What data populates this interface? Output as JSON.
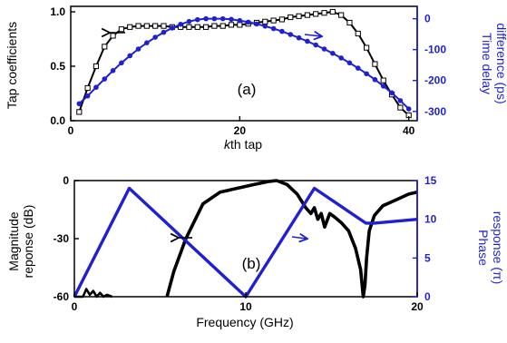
{
  "chart_data": [
    {
      "type": "line",
      "panel_label": "(a)",
      "xlabel": "kth tap",
      "xlabel_k": "k",
      "xlabel_rest": "th tap",
      "ylabel": "Tap coefficients",
      "ylabel_right": [
        "Time delay",
        "difference (ps)"
      ],
      "xlim": [
        0,
        41
      ],
      "ylim": [
        0,
        1.05
      ],
      "ylim_right": [
        -330,
        40
      ],
      "x_ticks": [
        0,
        20,
        40
      ],
      "y_ticks": [
        0.0,
        0.5,
        1.0
      ],
      "y_tick_labels": [
        "0.0",
        "0.5",
        "1.0"
      ],
      "y_right_ticks": [
        0,
        -100,
        -200,
        -300
      ],
      "grid": false,
      "series": [
        {
          "axis": "left",
          "color": "#000000",
          "marker": "open-square",
          "x": [
            1,
            2,
            3,
            4,
            5,
            6,
            7,
            8,
            9,
            10,
            11,
            12,
            13,
            14,
            15,
            16,
            17,
            18,
            19,
            20,
            21,
            22,
            23,
            24,
            25,
            26,
            27,
            28,
            29,
            30,
            31,
            32,
            33,
            34,
            35,
            36,
            37,
            38,
            39,
            40
          ],
          "y": [
            0.08,
            0.3,
            0.5,
            0.68,
            0.78,
            0.84,
            0.86,
            0.87,
            0.87,
            0.87,
            0.87,
            0.86,
            0.86,
            0.86,
            0.86,
            0.86,
            0.87,
            0.87,
            0.88,
            0.88,
            0.89,
            0.9,
            0.91,
            0.92,
            0.93,
            0.95,
            0.96,
            0.97,
            0.98,
            0.99,
            1.0,
            0.97,
            0.9,
            0.8,
            0.67,
            0.52,
            0.37,
            0.24,
            0.12,
            0.05
          ]
        },
        {
          "axis": "right",
          "color": "#1f1fd6",
          "marker": "filled-circle",
          "x": [
            1,
            2,
            3,
            4,
            5,
            6,
            7,
            8,
            9,
            10,
            11,
            12,
            13,
            14,
            15,
            16,
            17,
            18,
            19,
            20,
            21,
            22,
            23,
            24,
            25,
            26,
            27,
            28,
            29,
            30,
            31,
            32,
            33,
            34,
            35,
            36,
            37,
            38,
            39,
            40
          ],
          "y": [
            -275,
            -250,
            -222,
            -195,
            -168,
            -143,
            -120,
            -98,
            -78,
            -60,
            -44,
            -30,
            -18,
            -9,
            -3,
            0,
            0,
            0,
            -2,
            -6,
            -11,
            -17,
            -24,
            -32,
            -41,
            -51,
            -62,
            -73,
            -85,
            -98,
            -112,
            -127,
            -143,
            -160,
            -178,
            -197,
            -218,
            -240,
            -265,
            -292
          ]
        }
      ],
      "arrows": [
        "left-arrow-to-tap-axis",
        "right-arrow-to-delay-axis"
      ]
    },
    {
      "type": "line",
      "panel_label": "(b)",
      "xlabel": "Frequency (GHz)",
      "ylabel": [
        "Magnitude",
        "reponse (dB)"
      ],
      "ylabel_right": [
        "Phase",
        "response (π)"
      ],
      "xlim": [
        0,
        20
      ],
      "ylim": [
        -60,
        0
      ],
      "ylim_right": [
        0,
        15
      ],
      "x_ticks": [
        0,
        10,
        20
      ],
      "y_ticks": [
        0,
        -30,
        -60
      ],
      "y_right_ticks": [
        0,
        5,
        10,
        15
      ],
      "grid": false,
      "series": [
        {
          "axis": "left",
          "color": "#000000",
          "x": [
            0,
            0.5,
            0.7,
            0.9,
            1.1,
            1.3,
            1.5,
            1.7,
            1.9,
            2.2,
            5.4,
            5.8,
            6.5,
            7.5,
            8.5,
            9.5,
            10.5,
            11.3,
            11.8,
            12.4,
            13,
            13.5,
            13.8,
            14.0,
            14.2,
            14.4,
            14.6,
            14.9,
            15.2,
            15.6,
            16.0,
            16.4,
            16.7,
            16.85,
            16.95,
            17.05,
            17.2,
            17.5,
            18,
            18.5,
            19,
            19.5,
            20
          ],
          "y": [
            -60,
            -60,
            -56,
            -59,
            -57,
            -60,
            -58,
            -60,
            -59,
            -60,
            -60,
            -47,
            -30,
            -12,
            -6,
            -4,
            -2,
            -0.5,
            0,
            -2,
            -7,
            -14,
            -17,
            -14,
            -20,
            -17,
            -24,
            -17,
            -19,
            -22,
            -26,
            -35,
            -46,
            -60,
            -54,
            -40,
            -26,
            -18,
            -13,
            -11,
            -9,
            -7,
            -6
          ]
        },
        {
          "axis": "right",
          "color": "#1f1fd6",
          "x": [
            0,
            3.2,
            10,
            14.0,
            17.0,
            17.5,
            20
          ],
          "y": [
            0,
            14,
            0,
            14,
            9.5,
            9.5,
            10
          ]
        }
      ],
      "arrows": [
        "left-arrow-to-magnitude-axis",
        "right-arrow-to-phase-axis"
      ]
    }
  ]
}
